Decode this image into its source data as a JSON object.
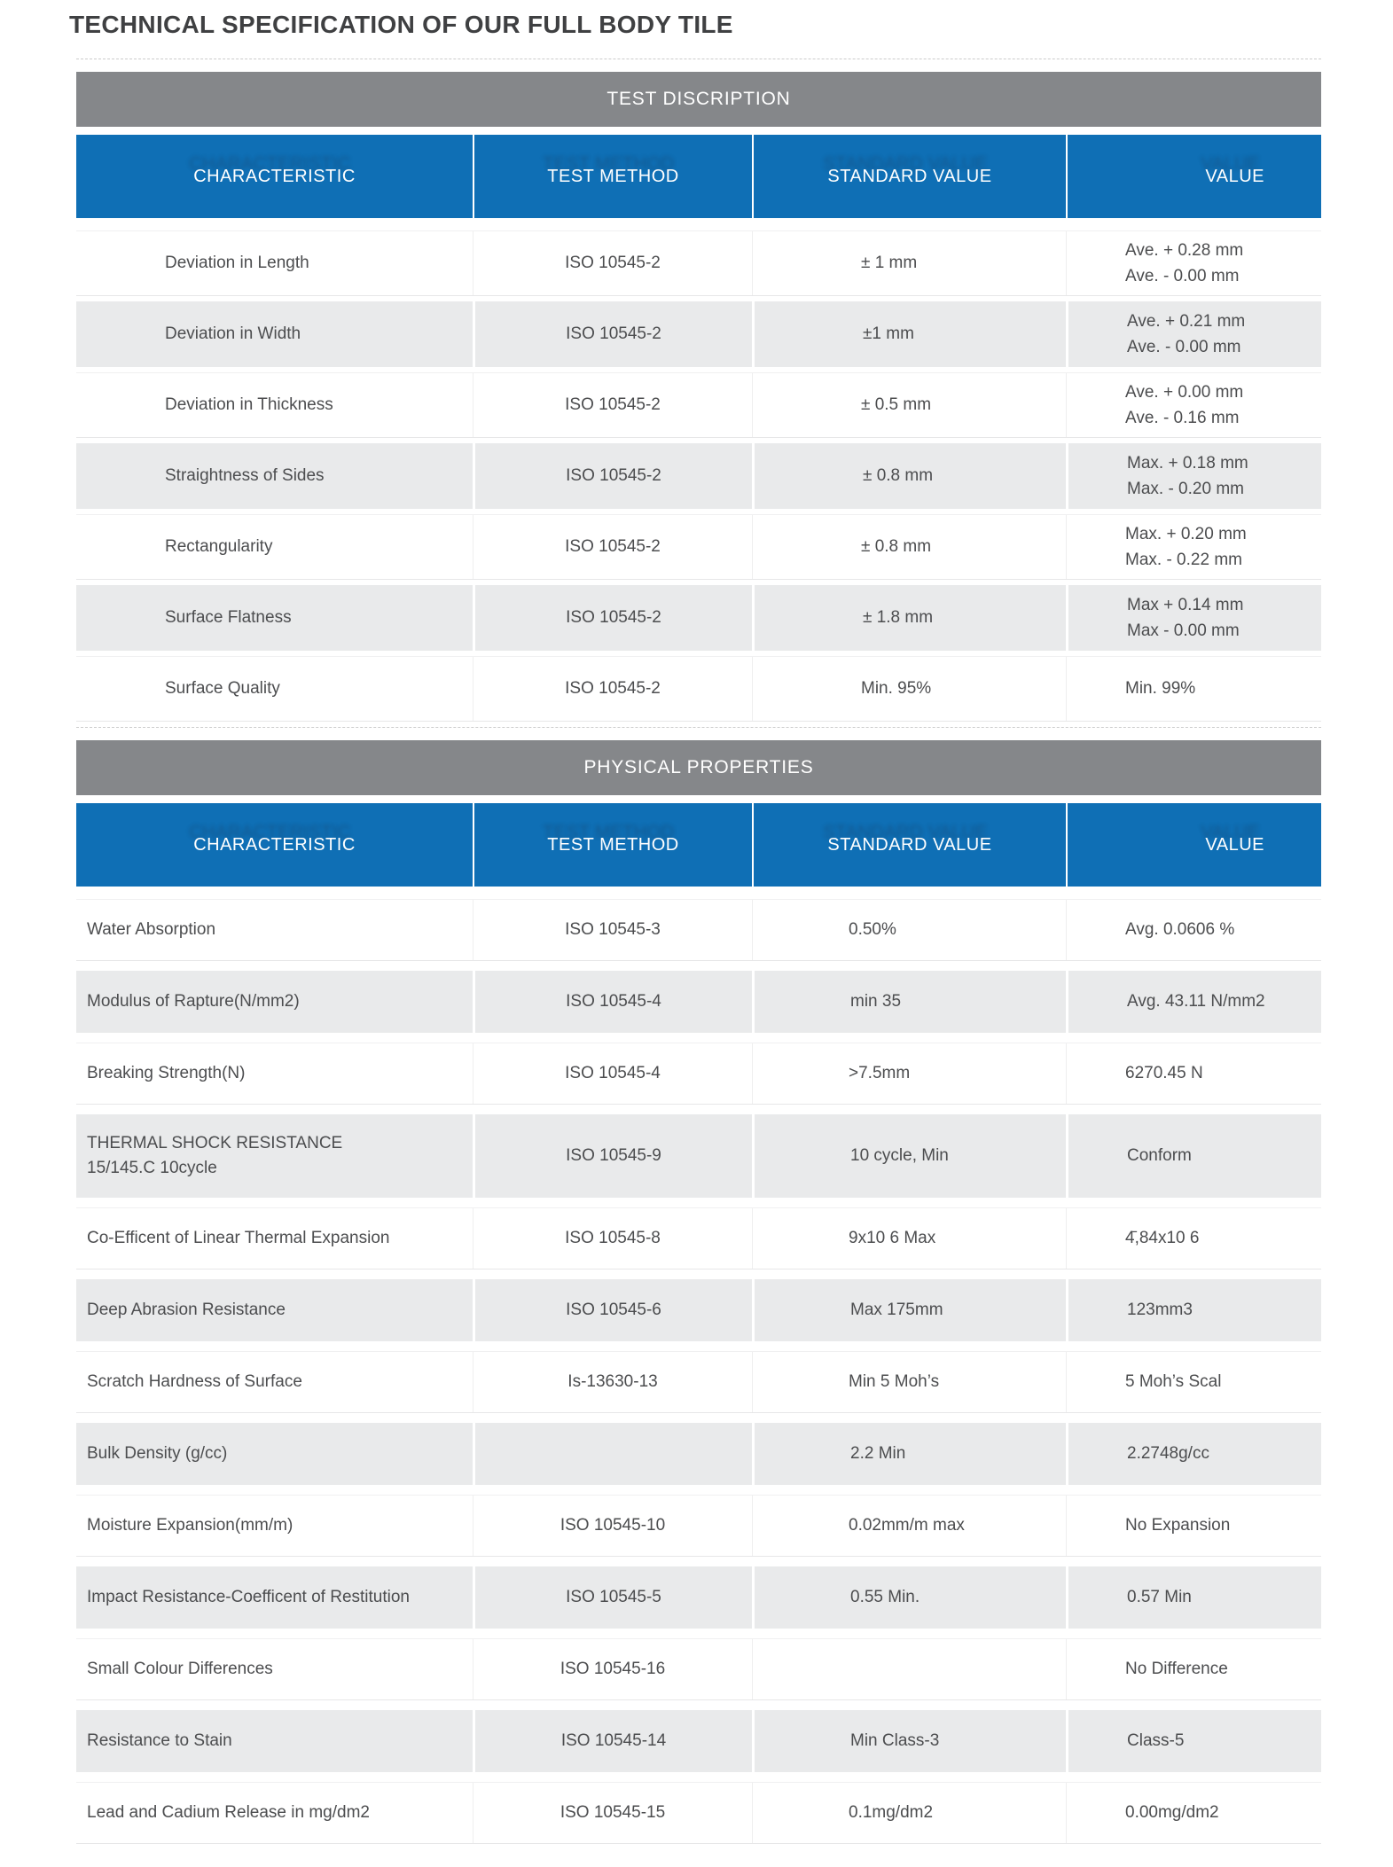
{
  "page": {
    "title": "TECHNICAL SPECIFICATION OF OUR FULL BODY TILE"
  },
  "colors": {
    "accent_blue": "#0f6fb5",
    "band_gray": "#85878a",
    "row_gray": "#e9eaeb"
  },
  "columns": [
    "CHARACTERISTIC",
    "TEST METHOD",
    "STANDARD VALUE",
    "VALUE"
  ],
  "sections": [
    {
      "band_title": "TEST DISCRIPTION",
      "rows": [
        {
          "characteristic": "Deviation in Length",
          "test_method": "ISO 10545-2",
          "standard_value": "± 1 mm",
          "value_lines": [
            "Ave. + 0.28 mm",
            "Ave. - 0.00 mm"
          ]
        },
        {
          "characteristic": "Deviation in Width",
          "test_method": "ISO 10545-2",
          "standard_value": "±1 mm",
          "value_lines": [
            "Ave. + 0.21 mm",
            "Ave. - 0.00 mm"
          ]
        },
        {
          "characteristic": "Deviation in Thickness",
          "test_method": "ISO 10545-2",
          "standard_value": "± 0.5 mm",
          "value_lines": [
            "Ave. + 0.00 mm",
            "Ave. - 0.16 mm"
          ]
        },
        {
          "characteristic": "Straightness of Sides",
          "test_method": "ISO 10545-2",
          "standard_value": "± 0.8 mm",
          "value_lines": [
            "Max. + 0.18 mm",
            "Max. - 0.20 mm"
          ]
        },
        {
          "characteristic": "Rectangularity",
          "test_method": "ISO 10545-2",
          "standard_value": "± 0.8 mm",
          "value_lines": [
            "Max. + 0.20 mm",
            "Max. - 0.22 mm"
          ]
        },
        {
          "characteristic": "Surface Flatness",
          "test_method": "ISO 10545-2",
          "standard_value": "± 1.8 mm",
          "value_lines": [
            "Max +  0.14 mm",
            "Max -  0.00 mm"
          ]
        },
        {
          "characteristic": "Surface Quality",
          "test_method": "ISO 10545-2",
          "standard_value": "Min. 95%",
          "value_lines": [
            "Min. 99%"
          ]
        }
      ]
    },
    {
      "band_title": "PHYSICAL PROPERTIES",
      "rows": [
        {
          "characteristic": "Water Absorption",
          "test_method": "ISO 10545-3",
          "standard_value": "0.50%",
          "value_lines": [
            "Avg. 0.0606 %"
          ]
        },
        {
          "characteristic": "Modulus of Rapture(N/mm2)",
          "test_method": "ISO 10545-4",
          "standard_value": "min 35",
          "value_lines": [
            "Avg. 43.11 N/mm2"
          ]
        },
        {
          "characteristic": "Breaking Strength(N)",
          "test_method": "ISO 10545-4",
          "standard_value": ">7.5mm",
          "value_lines": [
            "6270.45 N"
          ]
        },
        {
          "characteristic": "THERMAL SHOCK RESISTANCE\n15/145.C 10cycle",
          "test_method": "ISO 10545-9",
          "standard_value": "10 cycle, Min",
          "value_lines": [
            "Conform"
          ]
        },
        {
          "characteristic": "Co-Efficent of Linear Thermal Expansion",
          "test_method": "ISO 10545-8",
          "standard_value": "9x10 6 Max",
          "value_lines": [
            "4̄,84x10 6"
          ]
        },
        {
          "characteristic": "Deep Abrasion Resistance",
          "test_method": "ISO 10545-6",
          "standard_value": "Max 175mm",
          "value_lines": [
            "123mm3"
          ]
        },
        {
          "characteristic": "Scratch Hardness of Surface",
          "test_method": "Is-13630-13",
          "standard_value": "Min 5 Moh’s",
          "value_lines": [
            "5 Moh’s Scal"
          ]
        },
        {
          "characteristic": "Bulk Density (g/cc)",
          "test_method": "",
          "standard_value": "2.2 Min",
          "value_lines": [
            "2.2748g/cc"
          ]
        },
        {
          "characteristic": "Moisture Expansion(mm/m)",
          "test_method": "ISO 10545-10",
          "standard_value": "0.02mm/m max",
          "value_lines": [
            "No Expansion"
          ]
        },
        {
          "characteristic": "Impact Resistance-Coefficent of Restitution",
          "test_method": "ISO 10545-5",
          "standard_value": "0.55 Min.",
          "value_lines": [
            "0.57 Min"
          ]
        },
        {
          "characteristic": "Small Colour Differences",
          "test_method": "ISO 10545-16",
          "standard_value": "",
          "value_lines": [
            "No Difference"
          ]
        },
        {
          "characteristic": "Resistance to Stain",
          "test_method": "ISO 10545-14",
          "standard_value": "Min Class-3",
          "value_lines": [
            "Class-5"
          ]
        },
        {
          "characteristic": "Lead and Cadium Release in mg/dm2",
          "test_method": "ISO 10545-15",
          "standard_value": "0.1mg/dm2",
          "value_lines": [
            "0.00mg/dm2"
          ]
        }
      ]
    }
  ]
}
